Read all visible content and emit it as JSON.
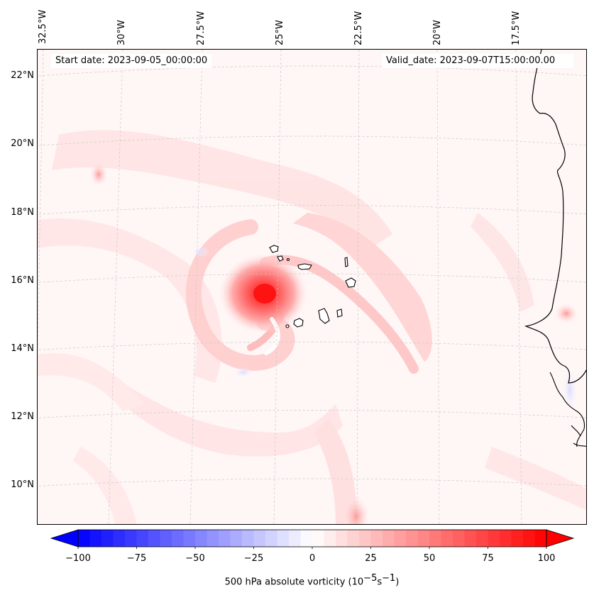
{
  "map": {
    "start_date": "Start date: 2023-09-05_00:00:00",
    "valid_date": "Valid_date: 2023-09-07T15:00:00.00",
    "lon_labels": [
      "32.5°W",
      "30°W",
      "27.5°W",
      "25°W",
      "22.5°W",
      "20°W",
      "17.5°W"
    ],
    "lat_labels": [
      "22°N",
      "20°N",
      "18°N",
      "16°N",
      "14°N",
      "12°N",
      "10°N"
    ],
    "field": "500 hPa absolute vorticity",
    "storm_center": {
      "lon": -25.3,
      "lat": 15.6
    },
    "islands": "Cabo Verde",
    "colors": {
      "positive": "#ff0000",
      "negative": "#0000ff",
      "coast": "#000000",
      "grid": "#c8c8c8"
    }
  },
  "colorbar": {
    "label": "500 hPa absolute vorticity (10",
    "unit_exp1": "−5",
    "unit_mid": "s",
    "unit_exp2": "−1",
    "unit_close": ")",
    "ticks": [
      "−100",
      "−75",
      "−50",
      "−25",
      "0",
      "25",
      "50",
      "75",
      "100"
    ],
    "min": -100,
    "max": 100
  }
}
